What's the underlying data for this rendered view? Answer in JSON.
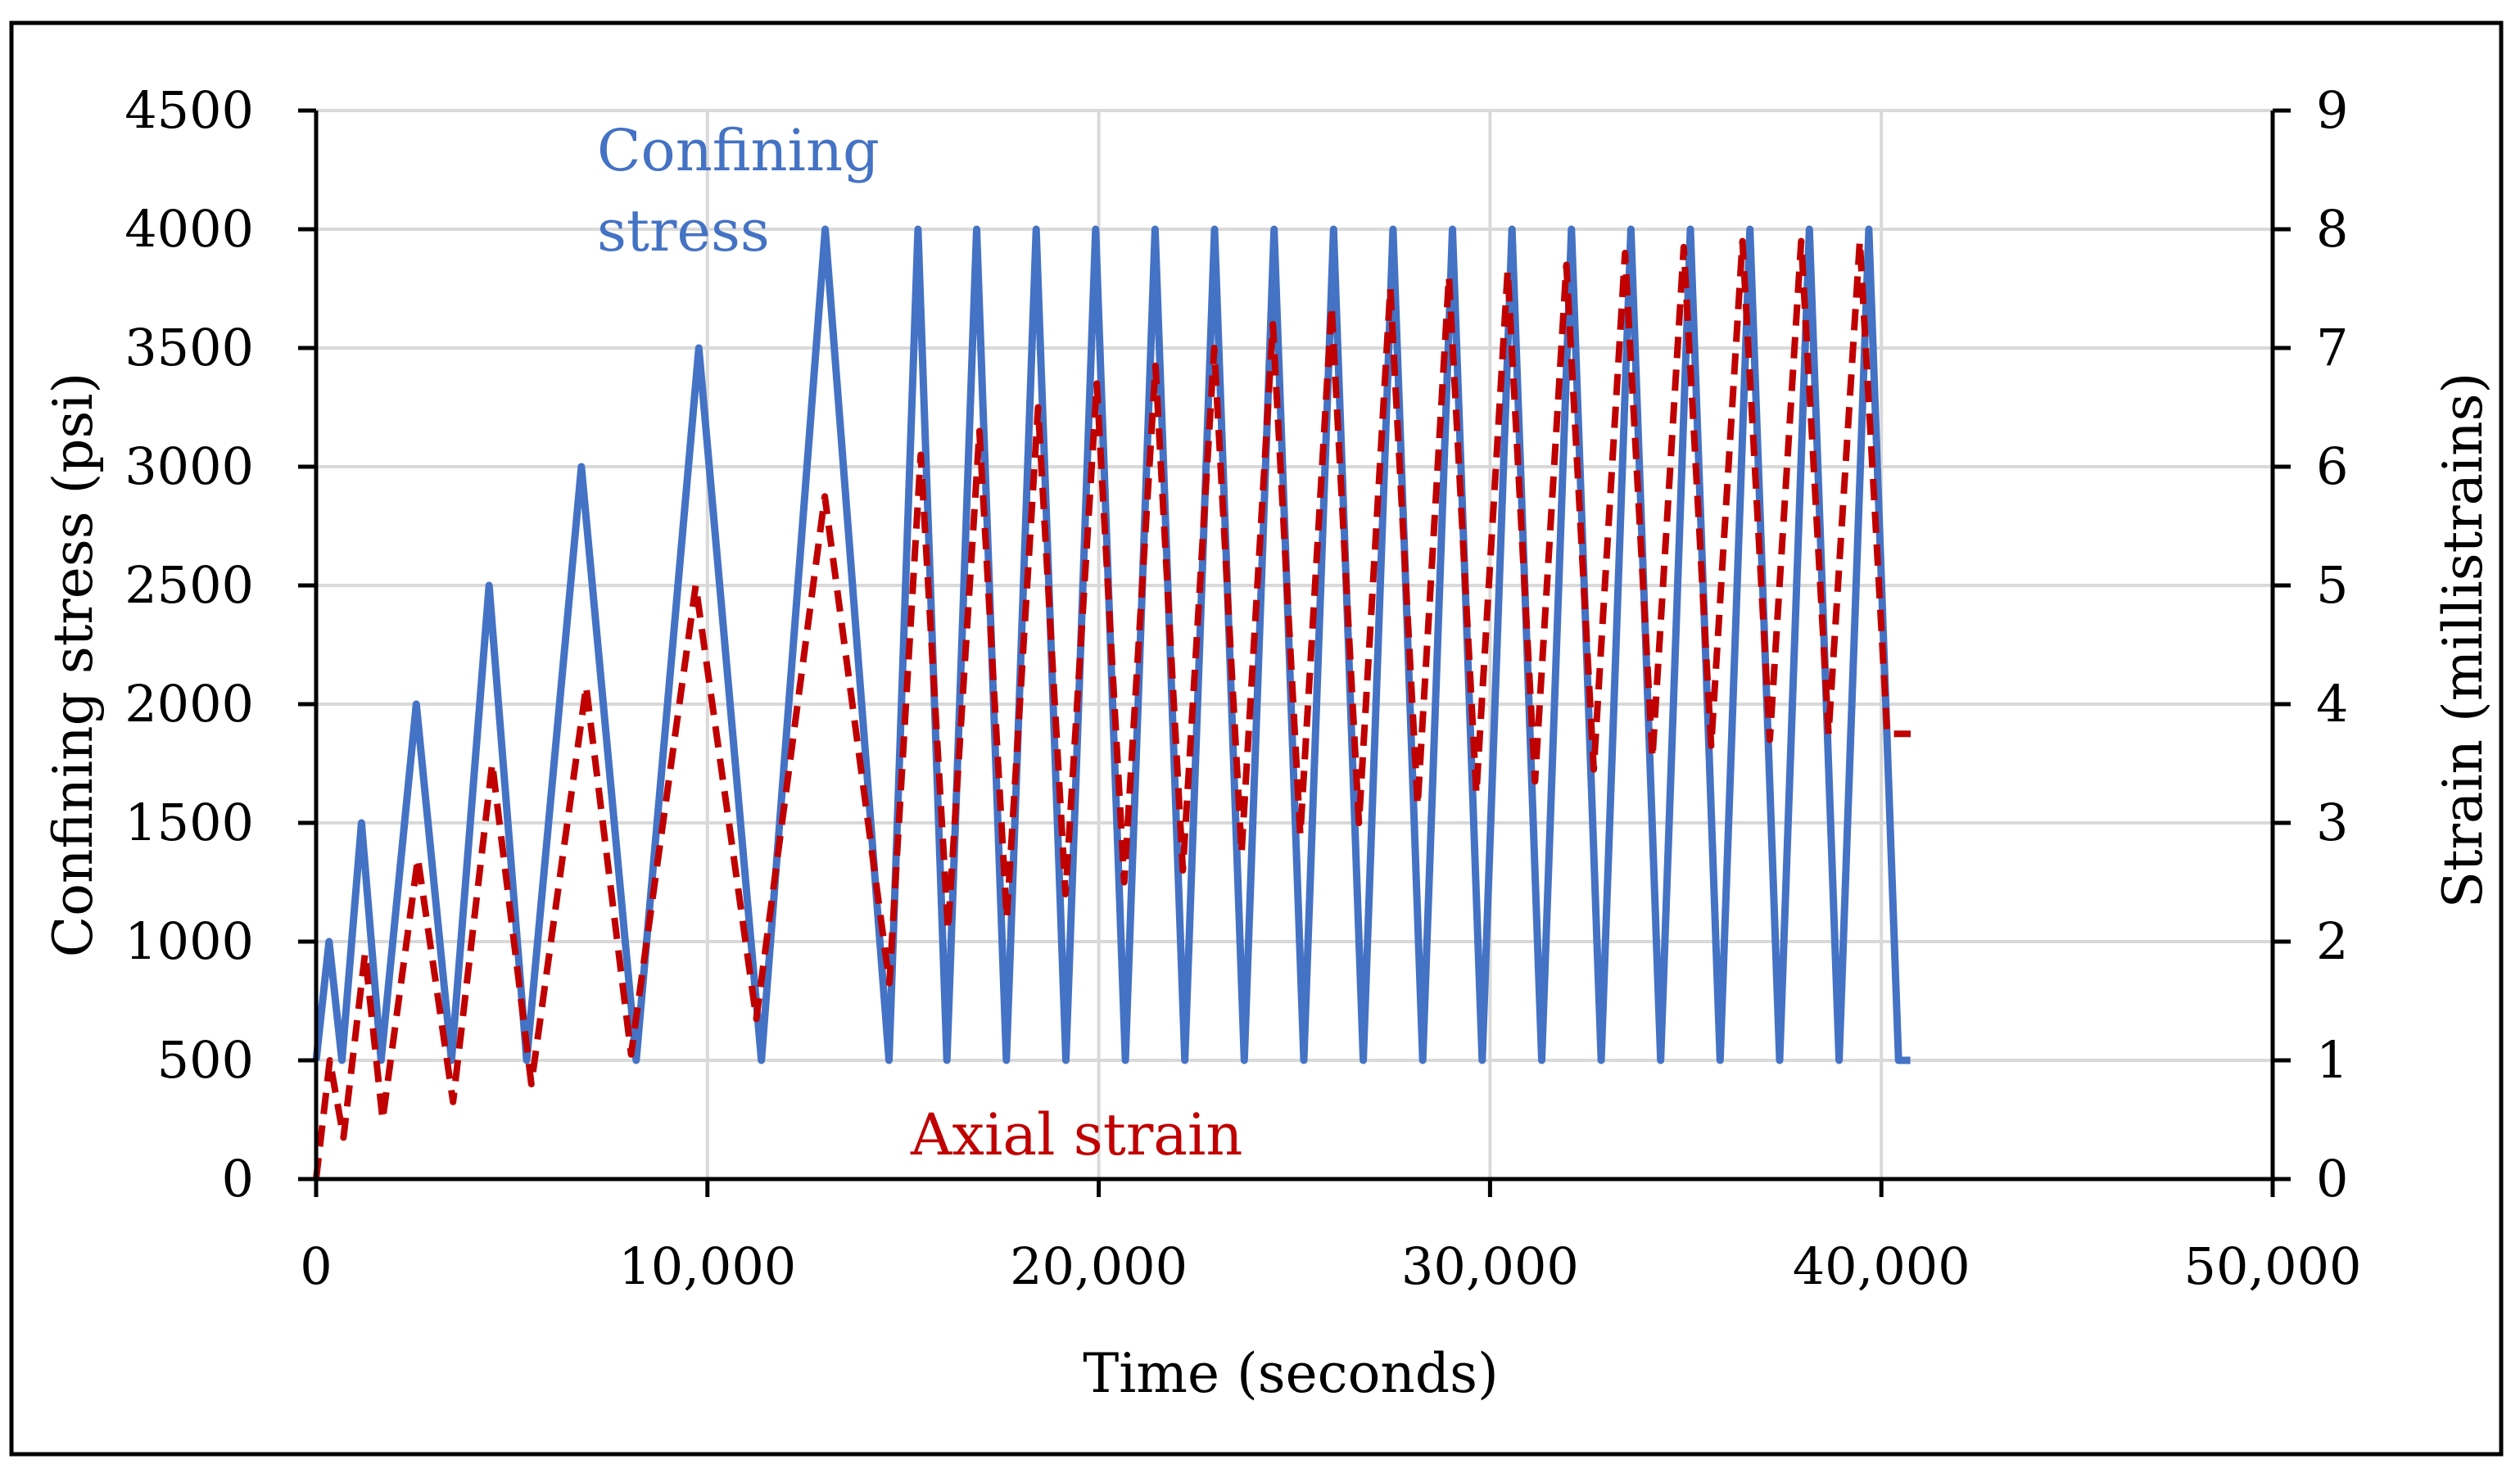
{
  "chart_data": {
    "type": "line",
    "title": "",
    "xlabel": "Time (seconds)",
    "ylabel_left": "Confining stress (psi)",
    "ylabel_right": "Strain (millistrains)",
    "xlim": [
      0,
      50000
    ],
    "ylim_left": [
      0,
      4500
    ],
    "ylim_right": [
      0,
      9
    ],
    "x_ticks": [
      0,
      10000,
      20000,
      30000,
      40000,
      50000
    ],
    "x_tick_labels": [
      "0",
      "10,000",
      "20,000",
      "30,000",
      "40,000",
      "50,000"
    ],
    "y_left_ticks": [
      0,
      500,
      1000,
      1500,
      2000,
      2500,
      3000,
      3500,
      4000,
      4500
    ],
    "y_left_tick_labels": [
      "0",
      "500",
      "1000",
      "1500",
      "2000",
      "2500",
      "3000",
      "3500",
      "4000",
      "4500"
    ],
    "y_right_ticks": [
      0,
      1,
      2,
      3,
      4,
      5,
      6,
      7,
      8,
      9
    ],
    "y_right_tick_labels": [
      "0",
      "1",
      "2",
      "3",
      "4",
      "5",
      "6",
      "7",
      "8",
      "9"
    ],
    "grid": true,
    "annotations": {
      "confining_line1": "Confining",
      "confining_line2": "stress",
      "axial": "Axial strain"
    },
    "series": [
      {
        "name": "Confining stress",
        "axis": "left",
        "color": "#4472C4",
        "style": "solid",
        "x": [
          0,
          330,
          660,
          1160,
          1660,
          2560,
          3460,
          4420,
          5380,
          6780,
          8180,
          9780,
          11380,
          13010,
          14640,
          15380,
          16120,
          16880,
          17640,
          18400,
          19160,
          19920,
          20680,
          21440,
          22200,
          22960,
          23720,
          24480,
          25240,
          26000,
          26760,
          27520,
          28280,
          29040,
          29800,
          30560,
          31320,
          32080,
          32840,
          33600,
          34360,
          35120,
          35880,
          36640,
          37400,
          38160,
          38920,
          39680,
          40440,
          40740
        ],
        "y": [
          500,
          1000,
          500,
          1500,
          500,
          2000,
          500,
          2500,
          500,
          3000,
          500,
          3500,
          500,
          4000,
          500,
          4000,
          500,
          4000,
          500,
          4000,
          500,
          4000,
          500,
          4000,
          500,
          4000,
          500,
          4000,
          500,
          4000,
          500,
          4000,
          500,
          4000,
          500,
          4000,
          500,
          4000,
          500,
          4000,
          500,
          4000,
          500,
          4000,
          500,
          4000,
          500,
          4000,
          500,
          500
        ]
      },
      {
        "name": "Axial strain",
        "axis": "right",
        "color": "#C00000",
        "style": "dashed",
        "x": [
          0,
          350,
          700,
          1250,
          1700,
          2600,
          3500,
          4500,
          5500,
          6900,
          8050,
          9700,
          11250,
          13000,
          14650,
          15450,
          16150,
          16950,
          17650,
          18450,
          19150,
          19950,
          20650,
          21450,
          22150,
          22950,
          23650,
          24450,
          25150,
          25950,
          26650,
          27450,
          28150,
          28950,
          29650,
          30450,
          31150,
          31950,
          32650,
          33450,
          34150,
          34950,
          35650,
          36450,
          37150,
          37950,
          38650,
          39450,
          40150,
          40750
        ],
        "y": [
          0,
          1.0,
          0.35,
          1.9,
          0.5,
          2.7,
          0.65,
          3.5,
          0.8,
          4.15,
          1.05,
          5.0,
          1.35,
          5.75,
          1.65,
          6.1,
          2.1,
          6.3,
          2.2,
          6.5,
          2.4,
          6.7,
          2.5,
          6.85,
          2.6,
          7.0,
          2.75,
          7.2,
          2.9,
          7.35,
          3.0,
          7.5,
          3.15,
          7.6,
          3.25,
          7.65,
          3.35,
          7.7,
          3.45,
          7.8,
          3.55,
          7.85,
          3.65,
          7.9,
          3.7,
          7.9,
          3.75,
          7.9,
          3.75,
          3.75
        ]
      }
    ]
  }
}
